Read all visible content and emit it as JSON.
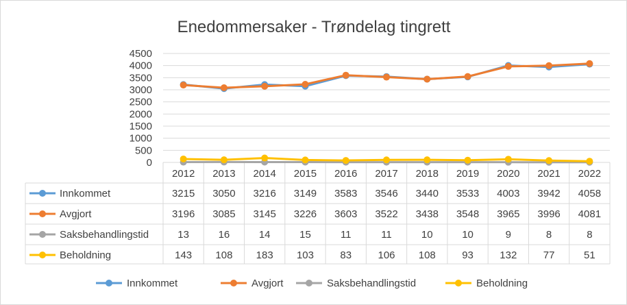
{
  "chart_data": {
    "type": "line",
    "title": "Enedommersaker  - Trøndelag tingrett",
    "categories": [
      "2012",
      "2013",
      "2014",
      "2015",
      "2016",
      "2017",
      "2018",
      "2019",
      "2020",
      "2021",
      "2022"
    ],
    "ylim": [
      0,
      4500
    ],
    "yticks": [
      0,
      500,
      1000,
      1500,
      2000,
      2500,
      3000,
      3500,
      4000,
      4500
    ],
    "grid": true,
    "legend_position": "bottom",
    "data_table": true,
    "series": [
      {
        "name": "Innkommet",
        "color": "#5B9BD5",
        "values": [
          3215,
          3050,
          3216,
          3149,
          3583,
          3546,
          3440,
          3533,
          4003,
          3942,
          4058
        ]
      },
      {
        "name": "Avgjort",
        "color": "#ED7D31",
        "values": [
          3196,
          3085,
          3145,
          3226,
          3603,
          3522,
          3438,
          3548,
          3965,
          3996,
          4081
        ]
      },
      {
        "name": "Saksbehandlingstid",
        "color": "#A5A5A5",
        "values": [
          13,
          16,
          14,
          15,
          11,
          11,
          10,
          10,
          9,
          8,
          8
        ]
      },
      {
        "name": "Beholdning",
        "color": "#FFC000",
        "values": [
          143,
          108,
          183,
          103,
          83,
          106,
          108,
          93,
          132,
          77,
          51
        ]
      }
    ]
  }
}
